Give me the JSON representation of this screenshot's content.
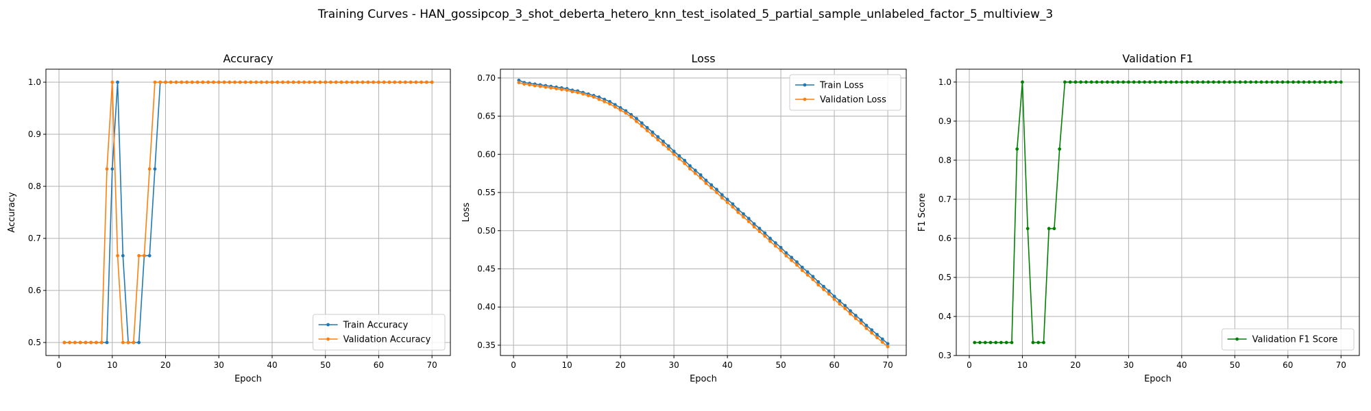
{
  "suptitle": "Training Curves - HAN_gossipcop_3_shot_deberta_hetero_knn_test_isolated_5_partial_sample_unlabeled_factor_5_multiview_3",
  "colors": {
    "train": "#1f77b4",
    "validation": "#ff7f0e",
    "f1": "#008000"
  },
  "chart_data": [
    {
      "type": "line",
      "title": "Accuracy",
      "xlabel": "Epoch",
      "ylabel": "Accuracy",
      "xlim": [
        -2.45,
        73.45
      ],
      "ylim": [
        0.475,
        1.025
      ],
      "xticks": [
        0,
        10,
        20,
        30,
        40,
        50,
        60,
        70
      ],
      "yticks": [
        0.5,
        0.6,
        0.7,
        0.8,
        0.9,
        1.0
      ],
      "ytick_labels": [
        "0.5",
        "0.6",
        "0.7",
        "0.8",
        "0.9",
        "1.0"
      ],
      "grid": true,
      "legend": "lower right",
      "series": [
        {
          "name": "Train Accuracy",
          "color": "#1f77b4",
          "x": [
            1,
            2,
            3,
            4,
            5,
            6,
            7,
            8,
            9,
            10,
            11,
            12,
            13,
            14,
            15,
            16,
            17,
            18,
            19,
            20,
            21,
            22,
            23,
            24,
            25,
            26,
            27,
            28,
            29,
            30,
            31,
            32,
            33,
            34,
            35,
            36,
            37,
            38,
            39,
            40,
            41,
            42,
            43,
            44,
            45,
            46,
            47,
            48,
            49,
            50,
            51,
            52,
            53,
            54,
            55,
            56,
            57,
            58,
            59,
            60,
            61,
            62,
            63,
            64,
            65,
            66,
            67,
            68,
            69,
            70
          ],
          "y": [
            0.5,
            0.5,
            0.5,
            0.5,
            0.5,
            0.5,
            0.5,
            0.5,
            0.5,
            0.8333,
            1.0,
            0.6667,
            0.5,
            0.5,
            0.5,
            0.6667,
            0.6667,
            0.8333,
            1.0,
            1.0,
            1.0,
            1.0,
            1.0,
            1.0,
            1.0,
            1.0,
            1.0,
            1.0,
            1.0,
            1.0,
            1.0,
            1.0,
            1.0,
            1.0,
            1.0,
            1.0,
            1.0,
            1.0,
            1.0,
            1.0,
            1.0,
            1.0,
            1.0,
            1.0,
            1.0,
            1.0,
            1.0,
            1.0,
            1.0,
            1.0,
            1.0,
            1.0,
            1.0,
            1.0,
            1.0,
            1.0,
            1.0,
            1.0,
            1.0,
            1.0,
            1.0,
            1.0,
            1.0,
            1.0,
            1.0,
            1.0,
            1.0,
            1.0,
            1.0,
            1.0
          ]
        },
        {
          "name": "Validation Accuracy",
          "color": "#ff7f0e",
          "x": [
            1,
            2,
            3,
            4,
            5,
            6,
            7,
            8,
            9,
            10,
            11,
            12,
            13,
            14,
            15,
            16,
            17,
            18,
            19,
            20,
            21,
            22,
            23,
            24,
            25,
            26,
            27,
            28,
            29,
            30,
            31,
            32,
            33,
            34,
            35,
            36,
            37,
            38,
            39,
            40,
            41,
            42,
            43,
            44,
            45,
            46,
            47,
            48,
            49,
            50,
            51,
            52,
            53,
            54,
            55,
            56,
            57,
            58,
            59,
            60,
            61,
            62,
            63,
            64,
            65,
            66,
            67,
            68,
            69,
            70
          ],
          "y": [
            0.5,
            0.5,
            0.5,
            0.5,
            0.5,
            0.5,
            0.5,
            0.5,
            0.8333,
            1.0,
            0.6667,
            0.5,
            0.5,
            0.5,
            0.6667,
            0.6667,
            0.8333,
            1.0,
            1.0,
            1.0,
            1.0,
            1.0,
            1.0,
            1.0,
            1.0,
            1.0,
            1.0,
            1.0,
            1.0,
            1.0,
            1.0,
            1.0,
            1.0,
            1.0,
            1.0,
            1.0,
            1.0,
            1.0,
            1.0,
            1.0,
            1.0,
            1.0,
            1.0,
            1.0,
            1.0,
            1.0,
            1.0,
            1.0,
            1.0,
            1.0,
            1.0,
            1.0,
            1.0,
            1.0,
            1.0,
            1.0,
            1.0,
            1.0,
            1.0,
            1.0,
            1.0,
            1.0,
            1.0,
            1.0,
            1.0,
            1.0,
            1.0,
            1.0,
            1.0,
            1.0
          ]
        }
      ]
    },
    {
      "type": "line",
      "title": "Loss",
      "xlabel": "Epoch",
      "ylabel": "Loss",
      "xlim": [
        -2.45,
        73.45
      ],
      "ylim": [
        0.3365,
        0.7115
      ],
      "xticks": [
        0,
        10,
        20,
        30,
        40,
        50,
        60,
        70
      ],
      "yticks": [
        0.35,
        0.4,
        0.45,
        0.5,
        0.55,
        0.6,
        0.65,
        0.7
      ],
      "ytick_labels": [
        "0.35",
        "0.40",
        "0.45",
        "0.50",
        "0.55",
        "0.60",
        "0.65",
        "0.70"
      ],
      "grid": true,
      "legend": "upper right",
      "series": [
        {
          "name": "Train Loss",
          "color": "#1f77b4",
          "x": [
            1,
            2,
            3,
            4,
            5,
            6,
            7,
            8,
            9,
            10,
            11,
            12,
            13,
            14,
            15,
            16,
            17,
            18,
            19,
            20,
            21,
            22,
            23,
            24,
            25,
            26,
            27,
            28,
            29,
            30,
            31,
            32,
            33,
            34,
            35,
            36,
            37,
            38,
            39,
            40,
            41,
            42,
            43,
            44,
            45,
            46,
            47,
            48,
            49,
            50,
            51,
            52,
            53,
            54,
            55,
            56,
            57,
            58,
            59,
            60,
            61,
            62,
            63,
            64,
            65,
            66,
            67,
            68,
            69,
            70
          ],
          "y": [
            0.697,
            0.694,
            0.693,
            0.692,
            0.691,
            0.69,
            0.689,
            0.688,
            0.687,
            0.686,
            0.684,
            0.683,
            0.681,
            0.679,
            0.677,
            0.675,
            0.672,
            0.669,
            0.665,
            0.661,
            0.657,
            0.652,
            0.647,
            0.641,
            0.635,
            0.629,
            0.623,
            0.617,
            0.611,
            0.604,
            0.598,
            0.592,
            0.585,
            0.579,
            0.573,
            0.566,
            0.56,
            0.554,
            0.547,
            0.541,
            0.535,
            0.528,
            0.522,
            0.516,
            0.509,
            0.503,
            0.497,
            0.49,
            0.484,
            0.478,
            0.471,
            0.465,
            0.459,
            0.452,
            0.446,
            0.44,
            0.433,
            0.427,
            0.421,
            0.414,
            0.408,
            0.402,
            0.395,
            0.389,
            0.383,
            0.376,
            0.37,
            0.364,
            0.358,
            0.352
          ]
        },
        {
          "name": "Validation Loss",
          "color": "#ff7f0e",
          "x": [
            1,
            2,
            3,
            4,
            5,
            6,
            7,
            8,
            9,
            10,
            11,
            12,
            13,
            14,
            15,
            16,
            17,
            18,
            19,
            20,
            21,
            22,
            23,
            24,
            25,
            26,
            27,
            28,
            29,
            30,
            31,
            32,
            33,
            34,
            35,
            36,
            37,
            38,
            39,
            40,
            41,
            42,
            43,
            44,
            45,
            46,
            47,
            48,
            49,
            50,
            51,
            52,
            53,
            54,
            55,
            56,
            57,
            58,
            59,
            60,
            61,
            62,
            63,
            64,
            65,
            66,
            67,
            68,
            69,
            70
          ],
          "y": [
            0.694,
            0.692,
            0.691,
            0.69,
            0.689,
            0.688,
            0.687,
            0.686,
            0.685,
            0.684,
            0.682,
            0.681,
            0.679,
            0.677,
            0.675,
            0.672,
            0.669,
            0.666,
            0.662,
            0.658,
            0.654,
            0.649,
            0.643,
            0.637,
            0.631,
            0.625,
            0.619,
            0.613,
            0.607,
            0.6,
            0.594,
            0.588,
            0.581,
            0.575,
            0.569,
            0.562,
            0.556,
            0.55,
            0.543,
            0.537,
            0.531,
            0.524,
            0.518,
            0.512,
            0.505,
            0.499,
            0.493,
            0.486,
            0.48,
            0.474,
            0.467,
            0.461,
            0.455,
            0.448,
            0.442,
            0.436,
            0.429,
            0.423,
            0.417,
            0.41,
            0.404,
            0.398,
            0.391,
            0.385,
            0.379,
            0.372,
            0.366,
            0.36,
            0.354,
            0.348
          ]
        }
      ]
    },
    {
      "type": "line",
      "title": "Validation F1",
      "xlabel": "Epoch",
      "ylabel": "F1 Score",
      "xlim": [
        -2.45,
        73.45
      ],
      "ylim": [
        0.3,
        1.033
      ],
      "xticks": [
        0,
        10,
        20,
        30,
        40,
        50,
        60,
        70
      ],
      "yticks": [
        0.3,
        0.4,
        0.5,
        0.6,
        0.7,
        0.8,
        0.9,
        1.0
      ],
      "ytick_labels": [
        "0.3",
        "0.4",
        "0.5",
        "0.6",
        "0.7",
        "0.8",
        "0.9",
        "1.0"
      ],
      "grid": true,
      "legend": "lower right",
      "series": [
        {
          "name": "Validation F1 Score",
          "color": "#008000",
          "x": [
            1,
            2,
            3,
            4,
            5,
            6,
            7,
            8,
            9,
            10,
            11,
            12,
            13,
            14,
            15,
            16,
            17,
            18,
            19,
            20,
            21,
            22,
            23,
            24,
            25,
            26,
            27,
            28,
            29,
            30,
            31,
            32,
            33,
            34,
            35,
            36,
            37,
            38,
            39,
            40,
            41,
            42,
            43,
            44,
            45,
            46,
            47,
            48,
            49,
            50,
            51,
            52,
            53,
            54,
            55,
            56,
            57,
            58,
            59,
            60,
            61,
            62,
            63,
            64,
            65,
            66,
            67,
            68,
            69,
            70
          ],
          "y": [
            0.3333,
            0.3333,
            0.3333,
            0.3333,
            0.3333,
            0.3333,
            0.3333,
            0.3333,
            0.8286,
            1.0,
            0.625,
            0.3333,
            0.3333,
            0.3333,
            0.625,
            0.625,
            0.8286,
            1.0,
            1.0,
            1.0,
            1.0,
            1.0,
            1.0,
            1.0,
            1.0,
            1.0,
            1.0,
            1.0,
            1.0,
            1.0,
            1.0,
            1.0,
            1.0,
            1.0,
            1.0,
            1.0,
            1.0,
            1.0,
            1.0,
            1.0,
            1.0,
            1.0,
            1.0,
            1.0,
            1.0,
            1.0,
            1.0,
            1.0,
            1.0,
            1.0,
            1.0,
            1.0,
            1.0,
            1.0,
            1.0,
            1.0,
            1.0,
            1.0,
            1.0,
            1.0,
            1.0,
            1.0,
            1.0,
            1.0,
            1.0,
            1.0,
            1.0,
            1.0,
            1.0,
            1.0
          ]
        }
      ]
    }
  ]
}
